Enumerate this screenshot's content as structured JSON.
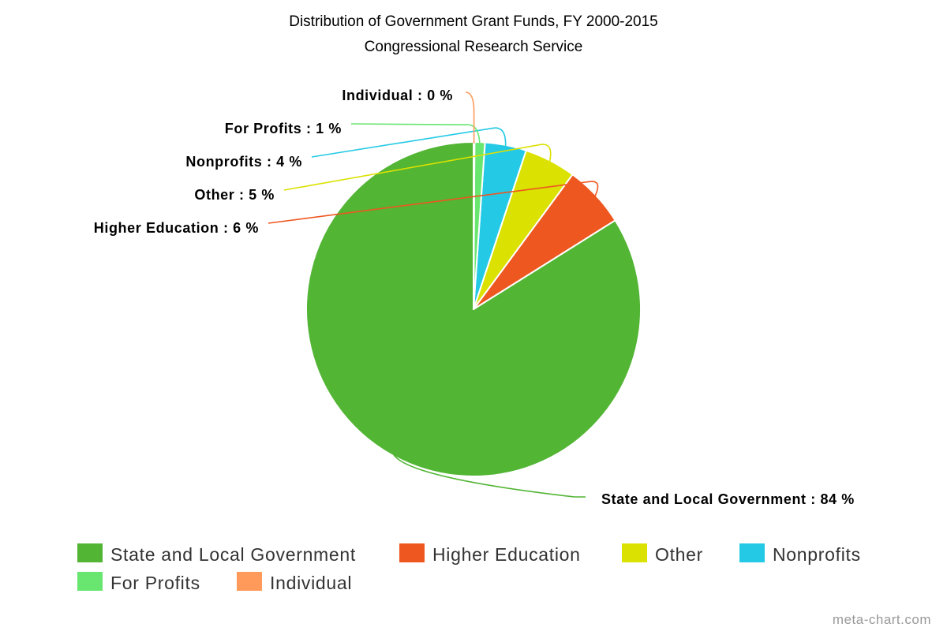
{
  "chart_data": {
    "type": "pie",
    "title": "Distribution of Government Grant Funds, FY 2000-2015",
    "subtitle": "Congressional Research Service",
    "slices": [
      {
        "name": "State and Local Government",
        "value": 84,
        "label": "State and Local Government : 84 %",
        "color": "#52b534"
      },
      {
        "name": "Higher Education",
        "value": 6,
        "label": "Higher Education : 6 %",
        "color": "#ee5720"
      },
      {
        "name": "Other",
        "value": 5,
        "label": "Other : 5 %",
        "color": "#dbe100"
      },
      {
        "name": "Nonprofits",
        "value": 4,
        "label": "Nonprofits : 4 %",
        "color": "#24c9e5"
      },
      {
        "name": "For Profits",
        "value": 1,
        "label": "For Profits : 1 %",
        "color": "#68e670"
      },
      {
        "name": "Individual",
        "value": 0,
        "label": "Individual : 0 %",
        "color": "#ff9a5a"
      }
    ],
    "legend_position": "bottom"
  },
  "footer": {
    "credit": "meta-chart.com"
  }
}
